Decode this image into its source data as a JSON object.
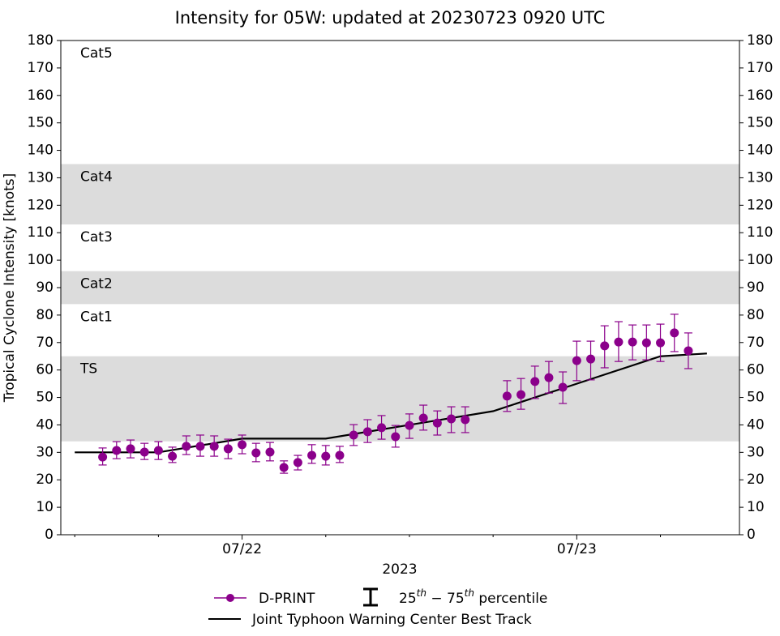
{
  "chart_data": {
    "type": "errorbar-line",
    "title": "Intensity for 05W: updated at 20230723 0920 UTC",
    "ylabel": "Tropical Cyclone Intensity [knots]",
    "xlabel": "2023",
    "ylim": [
      0,
      180
    ],
    "yticks": [
      0,
      10,
      20,
      30,
      40,
      50,
      60,
      70,
      80,
      90,
      100,
      110,
      120,
      130,
      140,
      150,
      160,
      170,
      180
    ],
    "xlim": [
      "2023-07-21T11:00",
      "2023-07-23T11:40"
    ],
    "xticks": [
      {
        "value": "2023-07-22T00:00",
        "label": "07/22"
      },
      {
        "value": "2023-07-23T00:00",
        "label": "07/23"
      }
    ],
    "xminorticks": [
      "2023-07-21T12:00",
      "2023-07-21T18:00",
      "2023-07-22T06:00",
      "2023-07-22T12:00",
      "2023-07-22T18:00",
      "2023-07-23T06:00"
    ],
    "bands": [
      {
        "label": "TS",
        "bottom": 34,
        "top": 65,
        "shaded": true
      },
      {
        "label": "Cat1",
        "bottom": 65,
        "top": 84,
        "shaded": false
      },
      {
        "label": "Cat2",
        "bottom": 84,
        "top": 96,
        "shaded": true
      },
      {
        "label": "Cat3",
        "bottom": 96,
        "top": 113,
        "shaded": false
      },
      {
        "label": "Cat4",
        "bottom": 113,
        "top": 135,
        "shaded": true
      },
      {
        "label": "Cat5",
        "bottom": 135,
        "top": 180,
        "shaded": false
      }
    ],
    "band_color": "#dcdcdc",
    "series": [
      {
        "name": "D-PRINT",
        "color": "#8b008b",
        "x": [
          "2023-07-21T14:00",
          "2023-07-21T15:00",
          "2023-07-21T16:00",
          "2023-07-21T17:00",
          "2023-07-21T18:00",
          "2023-07-21T19:00",
          "2023-07-21T20:00",
          "2023-07-21T21:00",
          "2023-07-21T22:00",
          "2023-07-21T23:00",
          "2023-07-22T00:00",
          "2023-07-22T01:00",
          "2023-07-22T02:00",
          "2023-07-22T03:00",
          "2023-07-22T04:00",
          "2023-07-22T05:00",
          "2023-07-22T06:00",
          "2023-07-22T07:00",
          "2023-07-22T08:00",
          "2023-07-22T09:00",
          "2023-07-22T10:00",
          "2023-07-22T11:00",
          "2023-07-22T12:00",
          "2023-07-22T13:00",
          "2023-07-22T14:00",
          "2023-07-22T15:00",
          "2023-07-22T16:00",
          "2023-07-22T19:00",
          "2023-07-22T20:00",
          "2023-07-22T21:00",
          "2023-07-22T22:00",
          "2023-07-22T23:00",
          "2023-07-23T00:00",
          "2023-07-23T01:00",
          "2023-07-23T02:00",
          "2023-07-23T03:00",
          "2023-07-23T04:00",
          "2023-07-23T05:00",
          "2023-07-23T06:00",
          "2023-07-23T07:00",
          "2023-07-23T08:00"
        ],
        "values": [
          28.3,
          30.7,
          31.3,
          30.1,
          30.7,
          28.6,
          32.2,
          32.2,
          32.2,
          31.3,
          32.8,
          29.8,
          30.1,
          24.5,
          26.3,
          28.9,
          28.6,
          28.9,
          36.3,
          37.5,
          39,
          35.7,
          39.8,
          42.5,
          40.7,
          42.2,
          41.9,
          50.5,
          51,
          55.8,
          57.2,
          53.7,
          63.4,
          64,
          68.8,
          70.2,
          70.2,
          69.9,
          69.9,
          73.5,
          67
        ],
        "low": [
          25.4,
          27.7,
          28,
          27.4,
          27.4,
          26.3,
          29.2,
          28.6,
          28.6,
          27.7,
          29.5,
          26.6,
          26.9,
          22.4,
          23.6,
          26,
          25.4,
          26.3,
          32.5,
          33.6,
          34.8,
          31.9,
          35.1,
          38.1,
          36.3,
          37.2,
          37.2,
          44.9,
          45.7,
          49.6,
          51.6,
          47.8,
          56.1,
          56.4,
          60.8,
          63.1,
          63.7,
          63.7,
          63.1,
          66.7,
          60.5
        ],
        "high": [
          31.6,
          33.9,
          34.5,
          33.3,
          33.9,
          31.9,
          36,
          36.3,
          36,
          34.8,
          36.3,
          33.3,
          33.6,
          26.9,
          28.9,
          32.8,
          32.5,
          32.2,
          40.1,
          41.9,
          43.4,
          39.8,
          44,
          47.2,
          45.1,
          46.6,
          46.6,
          56.1,
          56.9,
          61.4,
          63.1,
          59.3,
          70.5,
          70.5,
          76.1,
          77.6,
          76.4,
          76.4,
          76.7,
          80.3,
          73.5
        ]
      },
      {
        "name": "Joint Typhoon Warning Center Best Track",
        "color": "#000000",
        "x": [
          "2023-07-21T12:00",
          "2023-07-21T18:00",
          "2023-07-22T00:00",
          "2023-07-22T06:00",
          "2023-07-22T12:00",
          "2023-07-22T18:00",
          "2023-07-23T00:00",
          "2023-07-23T06:00",
          "2023-07-23T09:20"
        ],
        "values": [
          30,
          30,
          35,
          35,
          40,
          45,
          55,
          65,
          66
        ]
      }
    ],
    "errorbar_label": [
      {
        "text": "25"
      },
      {
        "text": "th",
        "sup": true
      },
      {
        "text": " − 75"
      },
      {
        "text": "th",
        "sup": true
      },
      {
        "text": " percentile"
      }
    ]
  }
}
